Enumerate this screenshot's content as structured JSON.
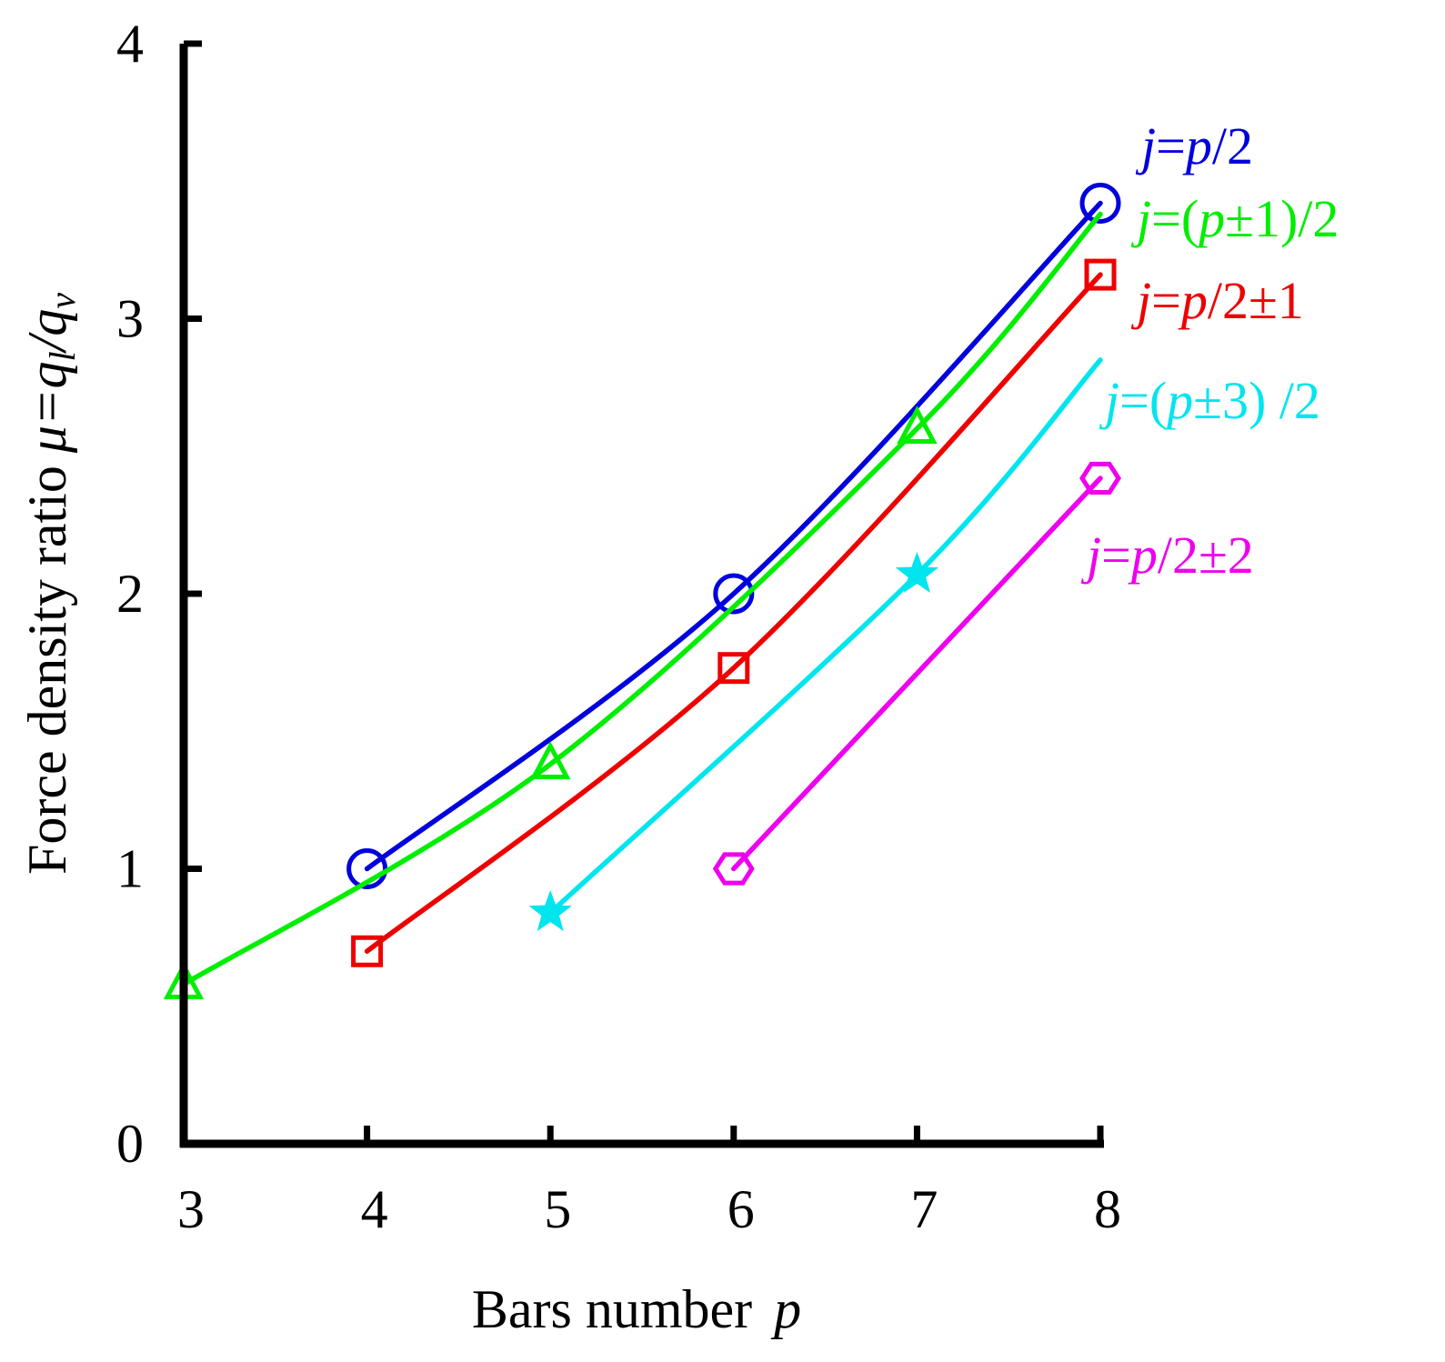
{
  "chart_data": {
    "type": "line",
    "title": "",
    "xlabel": "Bars number",
    "xlabel_var": "p",
    "ylabel": "Force density ratio",
    "ylabel_var": "μ=q",
    "ylabel_sub1": "l",
    "ylabel_mid": "/q",
    "ylabel_sub2": "v",
    "xlim": [
      3,
      8
    ],
    "ylim": [
      0,
      4
    ],
    "xticks": [
      "3",
      "4",
      "5",
      "6",
      "7",
      "8"
    ],
    "yticks": [
      "0",
      "1",
      "2",
      "3",
      "4"
    ],
    "grid": false,
    "legend_position": "right",
    "series": [
      {
        "name": "j=p/2",
        "label_parts": [
          [
            "j",
            true
          ],
          [
            "=",
            false
          ],
          [
            "p",
            true
          ],
          [
            "/2",
            false
          ]
        ],
        "color": "#0000dd",
        "marker": "circle",
        "points": [
          [
            4,
            1.0
          ],
          [
            6,
            2.0
          ],
          [
            8,
            3.42
          ]
        ]
      },
      {
        "name": "j=(p±1)/2",
        "label_parts": [
          [
            "j",
            true
          ],
          [
            "=(",
            false
          ],
          [
            "p",
            true
          ],
          [
            "±1)/2",
            false
          ]
        ],
        "color": "#00ee00",
        "marker": "triangle",
        "points": [
          [
            3,
            0.58
          ],
          [
            5,
            1.38
          ],
          [
            7,
            2.6
          ],
          [
            8,
            3.38
          ]
        ]
      },
      {
        "name": "j=p/2±1",
        "label_parts": [
          [
            "j",
            true
          ],
          [
            "=",
            false
          ],
          [
            "p",
            true
          ],
          [
            "/2±1",
            false
          ]
        ],
        "color": "#ee0000",
        "marker": "square",
        "points": [
          [
            4,
            0.7
          ],
          [
            6,
            1.73
          ],
          [
            8,
            3.16
          ]
        ]
      },
      {
        "name": "j=(p±3) /2",
        "label_parts": [
          [
            "j",
            true
          ],
          [
            "=(",
            false
          ],
          [
            "p",
            true
          ],
          [
            "±3) /2",
            false
          ]
        ],
        "color": "#00e5ee",
        "marker": "star",
        "points": [
          [
            5,
            0.84
          ],
          [
            7,
            2.07
          ],
          [
            8,
            2.85
          ]
        ]
      },
      {
        "name": "j=p/2±2",
        "label_parts": [
          [
            "j",
            true
          ],
          [
            "=",
            false
          ],
          [
            "p",
            true
          ],
          [
            "/2±2",
            false
          ]
        ],
        "color": "#ee00ee",
        "marker": "hexagon",
        "points": [
          [
            6,
            1.0
          ],
          [
            8,
            2.42
          ]
        ]
      }
    ]
  }
}
